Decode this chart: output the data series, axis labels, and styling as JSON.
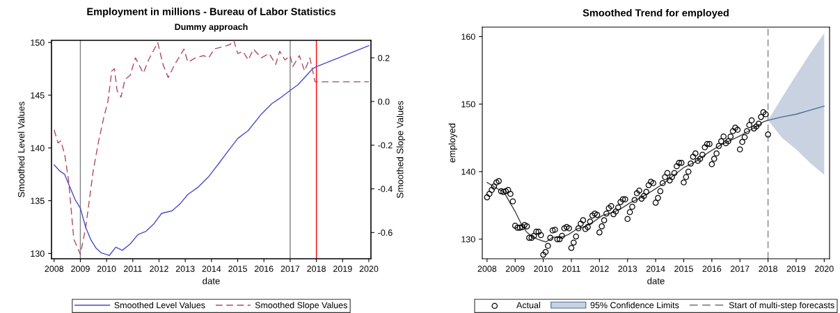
{
  "chart_data": [
    {
      "type": "line",
      "title": "Employment in millions - Bureau of Labor Statistics",
      "subtitle": "Dummy approach",
      "xlabel": "date",
      "ylabel": "Smoothed Level Values",
      "y2label": "Smoothed Slope Values",
      "xlim": [
        2007.9,
        2020.08
      ],
      "xticks": [
        2008,
        2009,
        2010,
        2011,
        2012,
        2013,
        2014,
        2015,
        2016,
        2017,
        2018,
        2019,
        2020
      ],
      "ylim": [
        129.5,
        150.2
      ],
      "yticks": [
        130,
        135,
        140,
        145,
        150
      ],
      "y2lim": [
        -0.72,
        0.28
      ],
      "y2ticks": [
        -0.6,
        -0.4,
        -0.2,
        {
          "value": 0,
          "label": "0.0"
        },
        0.2
      ],
      "grid": false,
      "legend": "bottom",
      "ref_lines": [
        {
          "axis": "x",
          "value": 2009,
          "color": "#808080"
        },
        {
          "axis": "x",
          "value": 2017,
          "color": "#808080"
        },
        {
          "axis": "x",
          "value": 2018,
          "color": "#ff0000"
        }
      ],
      "series": [
        {
          "name": "Smoothed Level Values",
          "color": "#4a4ac8",
          "line_style": "solid",
          "x": [
            2008.0,
            2008.2,
            2008.4,
            2008.6,
            2008.8,
            2009.0,
            2009.2,
            2009.4,
            2009.6,
            2009.8,
            2010.0,
            2010.1,
            2010.35,
            2010.6,
            2010.9,
            2011.2,
            2011.5,
            2011.8,
            2012.1,
            2012.5,
            2012.8,
            2013.1,
            2013.5,
            2013.9,
            2014.3,
            2014.6,
            2015.0,
            2015.4,
            2015.9,
            2016.3,
            2016.6,
            2017.0,
            2017.3,
            2017.6,
            2017.85,
            2018.0,
            2020.0
          ],
          "values": [
            138.4,
            137.85,
            137.5,
            136.3,
            135.1,
            134.3,
            132.5,
            131.3,
            130.5,
            130.05,
            129.9,
            129.8,
            130.6,
            130.3,
            130.9,
            131.8,
            132.1,
            132.8,
            133.8,
            134.05,
            134.7,
            135.6,
            136.3,
            137.3,
            138.6,
            139.6,
            140.9,
            141.65,
            143.2,
            144.2,
            144.7,
            145.45,
            146.0,
            146.8,
            147.5,
            147.7,
            149.7
          ]
        },
        {
          "name": "Smoothed Slope Values",
          "color": "#b04a5a",
          "line_style": "dashed",
          "axis": "y2",
          "x": [
            2008.0,
            2008.15,
            2008.25,
            2008.4,
            2008.55,
            2008.75,
            2009.0,
            2009.2,
            2009.5,
            2009.7,
            2009.9,
            2010.05,
            2010.2,
            2010.3,
            2010.4,
            2010.55,
            2010.7,
            2010.9,
            2011.1,
            2011.4,
            2011.6,
            2011.95,
            2012.15,
            2012.35,
            2012.6,
            2012.85,
            2012.95,
            2013.1,
            2013.4,
            2013.7,
            2013.9,
            2014.1,
            2014.4,
            2014.7,
            2014.85,
            2015.0,
            2015.2,
            2015.4,
            2015.6,
            2015.9,
            2016.2,
            2016.45,
            2016.6,
            2016.8,
            2017.0,
            2017.1,
            2017.35,
            2017.55,
            2017.75,
            2017.95,
            2018.0,
            2020.0
          ],
          "values": [
            -0.13,
            -0.19,
            -0.18,
            -0.24,
            -0.36,
            -0.63,
            -0.7,
            -0.58,
            -0.31,
            -0.18,
            -0.07,
            0.0,
            0.14,
            0.15,
            0.05,
            0.02,
            0.1,
            0.12,
            0.2,
            0.13,
            0.19,
            0.27,
            0.17,
            0.11,
            0.17,
            0.22,
            0.24,
            0.18,
            0.2,
            0.21,
            0.2,
            0.24,
            0.25,
            0.26,
            0.28,
            0.22,
            0.23,
            0.19,
            0.24,
            0.2,
            0.22,
            0.17,
            0.23,
            0.19,
            0.21,
            0.16,
            0.21,
            0.14,
            0.2,
            0.09,
            0.09,
            0.09
          ]
        }
      ]
    },
    {
      "type": "line",
      "title": "Smoothed Trend for employed",
      "xlabel": "date",
      "ylabel": "employed",
      "xlim": [
        2007.83,
        2020.19
      ],
      "xticks": [
        2008,
        2009,
        2010,
        2011,
        2012,
        2013,
        2014,
        2015,
        2016,
        2017,
        2018,
        2019,
        2020
      ],
      "ylim": [
        127.1,
        161.4
      ],
      "yticks": [
        130,
        140,
        150,
        160
      ],
      "grid": false,
      "legend": "bottom",
      "ref_lines": [
        {
          "axis": "x",
          "value": 2018,
          "color": "#808080",
          "line_style": "dashed",
          "label": "Start of multi-step forecasts"
        }
      ],
      "series": [
        {
          "type": "scatter",
          "name": "Actual",
          "color": "#000000",
          "marker": "circle",
          "x": [
            2008,
            2008.083,
            2008.167,
            2008.25,
            2008.333,
            2008.417,
            2008.5,
            2008.583,
            2008.667,
            2008.75,
            2008.833,
            2008.917,
            2009,
            2009.083,
            2009.167,
            2009.25,
            2009.333,
            2009.417,
            2009.5,
            2009.583,
            2009.667,
            2009.75,
            2009.833,
            2009.917,
            2010,
            2010.083,
            2010.167,
            2010.25,
            2010.333,
            2010.417,
            2010.5,
            2010.583,
            2010.667,
            2010.75,
            2010.833,
            2010.917,
            2011,
            2011.083,
            2011.167,
            2011.25,
            2011.333,
            2011.417,
            2011.5,
            2011.583,
            2011.667,
            2011.75,
            2011.833,
            2011.917,
            2012,
            2012.083,
            2012.167,
            2012.25,
            2012.333,
            2012.417,
            2012.5,
            2012.583,
            2012.667,
            2012.75,
            2012.833,
            2012.917,
            2013,
            2013.083,
            2013.167,
            2013.25,
            2013.333,
            2013.417,
            2013.5,
            2013.583,
            2013.667,
            2013.75,
            2013.833,
            2013.917,
            2014,
            2014.083,
            2014.167,
            2014.25,
            2014.333,
            2014.417,
            2014.5,
            2014.583,
            2014.667,
            2014.75,
            2014.833,
            2014.917,
            2015,
            2015.083,
            2015.167,
            2015.25,
            2015.333,
            2015.417,
            2015.5,
            2015.583,
            2015.667,
            2015.75,
            2015.833,
            2015.917,
            2016,
            2016.083,
            2016.167,
            2016.25,
            2016.333,
            2016.417,
            2016.5,
            2016.583,
            2016.667,
            2016.75,
            2016.833,
            2016.917,
            2017,
            2017.083,
            2017.167,
            2017.25,
            2017.333,
            2017.417,
            2017.5,
            2017.583,
            2017.667,
            2017.75,
            2017.833,
            2017.917,
            2018
          ],
          "values": [
            136.2,
            136.7,
            137.3,
            137.8,
            138.4,
            138.6,
            137.1,
            137.0,
            137.1,
            137.3,
            136.7,
            135.6,
            132.0,
            131.7,
            131.7,
            131.8,
            132.1,
            131.9,
            130.2,
            130.2,
            130.5,
            131.1,
            131.1,
            130.6,
            127.7,
            128.1,
            129.0,
            130.2,
            131.3,
            131.4,
            130.0,
            130.0,
            130.5,
            131.6,
            131.8,
            131.6,
            128.7,
            129.5,
            130.4,
            131.6,
            132.3,
            132.8,
            131.5,
            131.8,
            132.6,
            133.5,
            133.8,
            133.6,
            131.0,
            131.9,
            132.8,
            133.8,
            134.6,
            134.9,
            133.7,
            134.1,
            134.7,
            135.5,
            135.9,
            135.9,
            133.0,
            134.0,
            134.8,
            135.8,
            136.8,
            137.2,
            136.0,
            136.4,
            137.0,
            138.0,
            138.5,
            138.3,
            135.4,
            136.1,
            137.1,
            138.3,
            139.2,
            139.8,
            138.7,
            139.2,
            139.8,
            140.8,
            141.3,
            141.3,
            138.4,
            139.2,
            140.0,
            141.2,
            142.2,
            142.7,
            141.6,
            141.9,
            142.5,
            143.6,
            144.1,
            144.1,
            141.1,
            141.9,
            142.7,
            143.8,
            144.5,
            145.2,
            144.2,
            144.5,
            145.2,
            146.0,
            146.5,
            146.2,
            143.3,
            144.4,
            145.1,
            146.0,
            146.9,
            147.6,
            146.4,
            146.7,
            147.1,
            148.1,
            148.8,
            148.5,
            145.5
          ]
        },
        {
          "color": "#404040",
          "line_style": "solid",
          "x": [
            2008.0,
            2008.2,
            2008.4,
            2008.6,
            2008.8,
            2009.0,
            2009.2,
            2009.4,
            2009.6,
            2009.8,
            2010.0,
            2010.1,
            2010.35,
            2010.6,
            2010.9,
            2011.2,
            2011.5,
            2011.8,
            2012.1,
            2012.5,
            2012.8,
            2013.1,
            2013.5,
            2013.9,
            2014.3,
            2014.6,
            2015.0,
            2015.4,
            2015.9,
            2016.3,
            2016.6,
            2017.0,
            2017.3,
            2017.6,
            2017.85,
            2018.0
          ],
          "values": [
            138.4,
            137.9,
            137.4,
            137.0,
            135.5,
            134.1,
            132.4,
            131.1,
            130.4,
            130.0,
            129.7,
            129.6,
            130.3,
            130.2,
            130.7,
            131.5,
            131.9,
            132.6,
            133.5,
            134.0,
            134.6,
            135.4,
            136.2,
            137.2,
            138.3,
            139.3,
            140.6,
            141.4,
            142.9,
            143.9,
            144.5,
            145.3,
            146.0,
            146.7,
            147.4,
            147.6
          ]
        },
        {
          "type": "line",
          "name": "95% Confidence Limits",
          "color": "#4a6a98",
          "x": [
            2018.0,
            2018.5,
            2019.0,
            2019.5,
            2020.0
          ],
          "values": [
            147.6,
            148.1,
            148.5,
            149.1,
            149.7
          ],
          "lower": [
            147.6,
            145.0,
            143.3,
            141.3,
            139.5
          ],
          "upper": [
            147.6,
            151.0,
            154.3,
            157.5,
            160.5
          ]
        }
      ]
    }
  ]
}
